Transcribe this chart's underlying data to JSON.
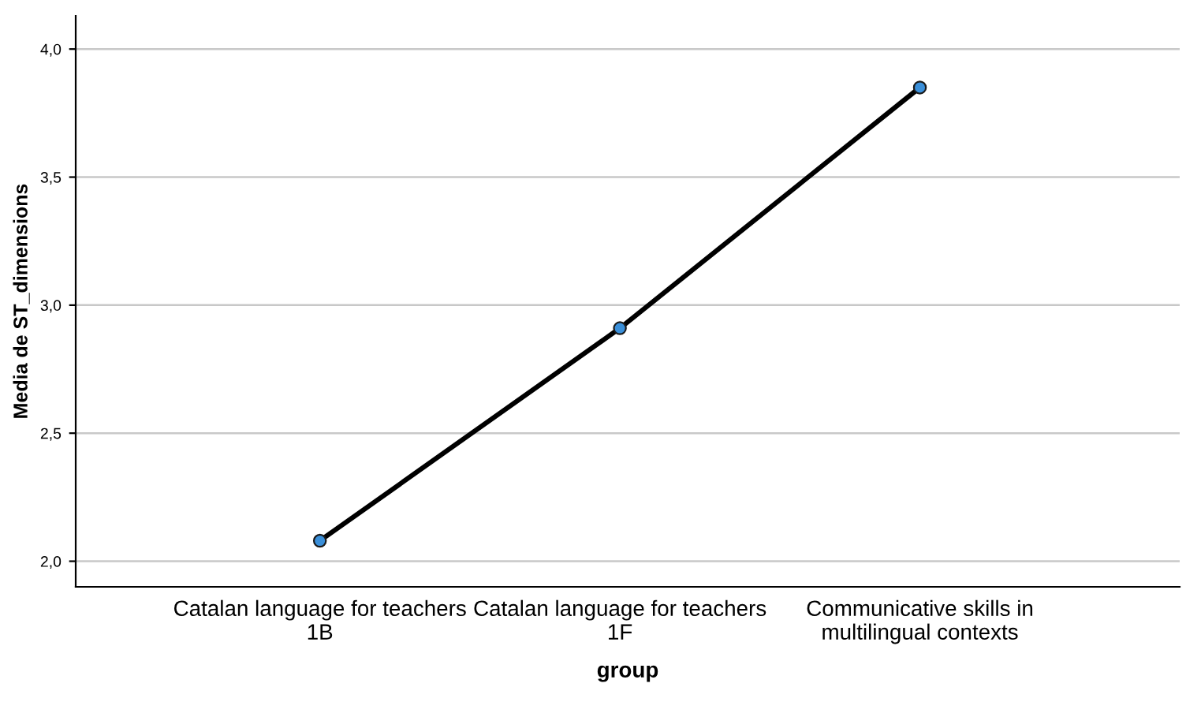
{
  "chart_data": {
    "type": "line",
    "xlabel": "group",
    "ylabel": "Media de ST_dimensions",
    "categories": [
      "Catalan language for teachers\n1B",
      "Catalan language for teachers\n1F",
      "Communicative skills in\nmultilingual contexts"
    ],
    "series": [
      {
        "color": "#000000",
        "colors": [
          "#3a8fd9",
          "#3a8fd9",
          "#3a8fd9"
        ],
        "values": [
          2.08,
          2.91,
          3.85
        ]
      }
    ],
    "ylim": [
      1.9,
      4.13
    ],
    "yticks": [
      {
        "value": 2.0,
        "label": "2,0"
      },
      {
        "value": 2.5,
        "label": "2,5"
      },
      {
        "value": 3.0,
        "label": "3,0"
      },
      {
        "value": 3.5,
        "label": "3,5"
      },
      {
        "value": 4.0,
        "label": "4,0"
      }
    ],
    "grid": "y",
    "marker": "circle",
    "line_style": "solid",
    "legend": false
  }
}
